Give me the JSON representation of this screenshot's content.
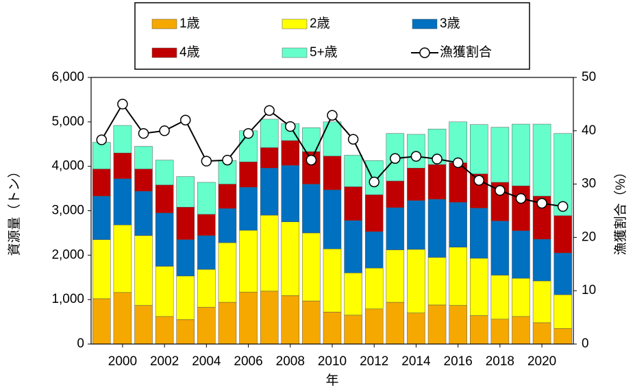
{
  "chart_data": {
    "type": "bar",
    "stacked": true,
    "x_label": "年",
    "y_label": "資源量（トン）",
    "y2_label": "漁獲割合（%）",
    "x": [
      1999,
      2000,
      2001,
      2002,
      2003,
      2004,
      2005,
      2006,
      2007,
      2008,
      2009,
      2010,
      2011,
      2012,
      2013,
      2014,
      2015,
      2016,
      2017,
      2018,
      2019,
      2020,
      2021
    ],
    "xlim": [
      1998.5,
      2021.5
    ],
    "xticks": [
      2000,
      2002,
      2004,
      2006,
      2008,
      2010,
      2012,
      2014,
      2016,
      2018,
      2020
    ],
    "ylim": [
      0,
      6000
    ],
    "yticks": [
      0,
      {
        "value": 1000,
        "label": "1,000"
      },
      {
        "value": 2000,
        "label": "2,000"
      },
      {
        "value": 3000,
        "label": "3,000"
      },
      {
        "value": 4000,
        "label": "4,000"
      },
      {
        "value": 5000,
        "label": "5,000"
      },
      {
        "value": 6000,
        "label": "6,000"
      }
    ],
    "y2lim": [
      0,
      50
    ],
    "y2ticks": [
      0,
      10,
      20,
      30,
      40,
      50
    ],
    "series": [
      {
        "name": "1歳",
        "color": "#f5a800",
        "values": [
          1020,
          1160,
          870,
          620,
          550,
          830,
          940,
          1170,
          1190,
          1090,
          970,
          720,
          650,
          790,
          940,
          700,
          880,
          870,
          640,
          560,
          620,
          480,
          350
        ]
      },
      {
        "name": "2歳",
        "color": "#ffff00",
        "values": [
          1330,
          1520,
          1570,
          1130,
          980,
          850,
          1340,
          1390,
          1710,
          1660,
          1530,
          1420,
          950,
          920,
          1180,
          1430,
          1070,
          1310,
          1290,
          990,
          860,
          940,
          760
        ]
      },
      {
        "name": "3歳",
        "color": "#0070c0",
        "values": [
          980,
          1040,
          1000,
          1200,
          820,
          760,
          770,
          970,
          1060,
          1270,
          1100,
          1330,
          1180,
          820,
          950,
          1100,
          1310,
          1010,
          1130,
          1220,
          1070,
          940,
          940
        ]
      },
      {
        "name": "4歳",
        "color": "#c00000",
        "values": [
          610,
          580,
          500,
          630,
          730,
          480,
          550,
          570,
          460,
          560,
          730,
          760,
          760,
          830,
          600,
          730,
          780,
          890,
          770,
          870,
          1010,
          970,
          840
        ]
      },
      {
        "name": "5+歳",
        "color": "#66ffcc",
        "values": [
          600,
          620,
          510,
          560,
          690,
          720,
          530,
          700,
          640,
          380,
          540,
          770,
          710,
          770,
          1070,
          760,
          800,
          920,
          1110,
          1240,
          1390,
          1620,
          1850
        ]
      },
      {
        "name": "漁獲割合",
        "color": "#000000",
        "type": "line",
        "axis": "y2",
        "values": [
          38.3,
          45.0,
          39.5,
          40.0,
          42.0,
          34.3,
          34.5,
          39.5,
          43.8,
          40.8,
          34.5,
          42.9,
          38.4,
          30.4,
          34.8,
          35.2,
          34.7,
          34.0,
          30.7,
          28.8,
          27.3,
          26.4,
          25.8
        ]
      }
    ]
  }
}
